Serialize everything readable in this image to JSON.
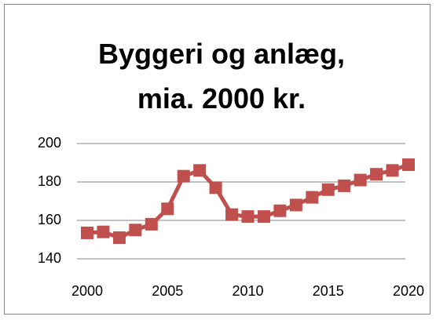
{
  "chart_data": {
    "type": "line",
    "title": "Byggeri og anlæg, mia. 2000 kr.",
    "x": [
      2000,
      2001,
      2002,
      2003,
      2004,
      2005,
      2006,
      2007,
      2008,
      2009,
      2010,
      2011,
      2012,
      2013,
      2014,
      2015,
      2016,
      2017,
      2018,
      2019,
      2020
    ],
    "series": [
      {
        "name": "Byggeri og anlæg",
        "color": "#c0504d",
        "values": [
          153.5,
          154,
          151,
          155,
          158,
          166,
          183,
          186,
          177,
          163,
          162,
          162,
          165,
          168,
          172,
          176,
          178,
          181,
          184,
          186,
          189
        ]
      }
    ],
    "xlim": [
      2000,
      2020
    ],
    "xticks": [
      2000,
      2005,
      2010,
      2015,
      2020
    ],
    "ylim": [
      140,
      200
    ],
    "yticks": [
      140,
      160,
      180,
      200
    ],
    "grid": true,
    "marker": "square"
  }
}
